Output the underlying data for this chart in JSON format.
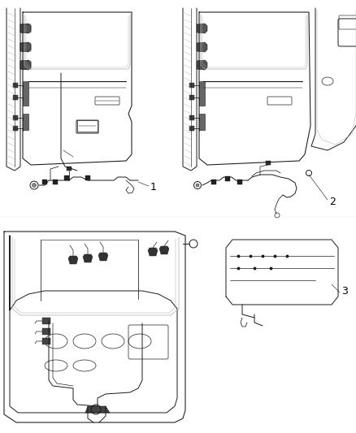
{
  "background_color": "#ffffff",
  "labels": [
    "1",
    "2",
    "3"
  ],
  "label_fontsize": 9,
  "label_color": "#000000",
  "line_color": "#1a1a1a",
  "line_width": 0.7,
  "gray_color": "#888888",
  "mid_gray": "#aaaaaa"
}
